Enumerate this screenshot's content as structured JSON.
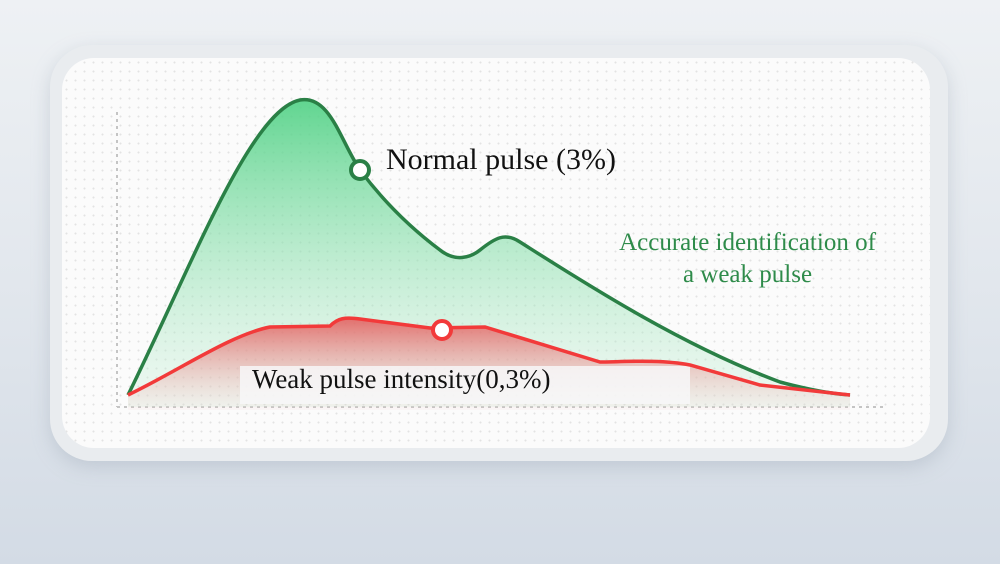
{
  "labels": {
    "normal_pulse": "Normal pulse (3%)",
    "accurate_line1": "Accurate identification of",
    "accurate_line2": "a weak pulse",
    "weak_pulse": "Weak pulse intensity(0,3%)"
  },
  "colors": {
    "normal_line": "#2a8046",
    "normal_fill": "#5fd68f",
    "weak_line": "#f23a3a",
    "weak_fill": "#e86a6a",
    "accent_text": "#2e8b4a"
  }
}
